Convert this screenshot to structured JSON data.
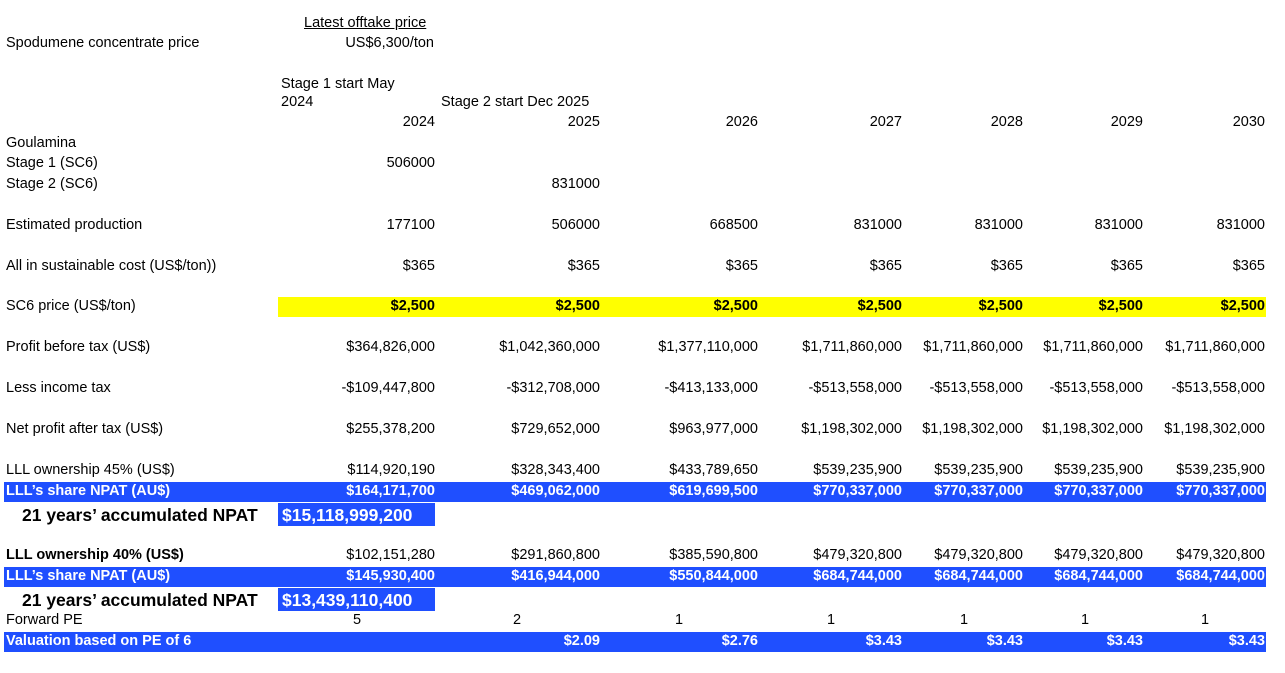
{
  "header": {
    "offtake_label": "Latest offtake price",
    "spodumene_label": "Spodumene concentrate price",
    "spodumene_value": "US$6,300/ton",
    "stage1_note_line1": "Stage 1 start May",
    "stage1_note_line2": "2024",
    "stage2_note": "Stage 2 start Dec 2025"
  },
  "years": [
    "2024",
    "2025",
    "2026",
    "2027",
    "2028",
    "2029",
    "2030"
  ],
  "labels": {
    "goulamina": "Goulamina",
    "stage1": "Stage 1 (SC6)",
    "stage2": "Stage 2 (SC6)",
    "estimated_production": "Estimated production",
    "aisc": "All in sustainable cost (US$/ton))",
    "sc6_price": "SC6 price (US$/ton)",
    "profit_before_tax": "Profit before tax (US$)",
    "less_income_tax": "Less income tax",
    "npat": "Net profit after tax (US$)",
    "own45": "LLL ownership 45% (US$)",
    "share45": "LLL’s share NPAT (AU$)",
    "accum": "21 years’ accumulated NPAT",
    "own40": "LLL ownership 40% (US$)",
    "share40": "LLL’s share NPAT (AU$)",
    "forward_pe": "Forward PE",
    "valuation": "Valuation based on PE of 6"
  },
  "rows": {
    "stage1": [
      "506000",
      "",
      "",
      "",
      "",
      "",
      ""
    ],
    "stage2": [
      "",
      "831000",
      "",
      "",
      "",
      "",
      ""
    ],
    "estimated_production": [
      "177100",
      "506000",
      "668500",
      "831000",
      "831000",
      "831000",
      "831000"
    ],
    "aisc": [
      "$365",
      "$365",
      "$365",
      "$365",
      "$365",
      "$365",
      "$365"
    ],
    "sc6_price": [
      "$2,500",
      "$2,500",
      "$2,500",
      "$2,500",
      "$2,500",
      "$2,500",
      "$2,500"
    ],
    "profit_before_tax": [
      "$364,826,000",
      "$1,042,360,000",
      "$1,377,110,000",
      "$1,711,860,000",
      "$1,711,860,000",
      "$1,711,860,000",
      "$1,711,860,000"
    ],
    "less_income_tax": [
      "-$109,447,800",
      "-$312,708,000",
      "-$413,133,000",
      "-$513,558,000",
      "-$513,558,000",
      "-$513,558,000",
      "-$513,558,000"
    ],
    "npat": [
      "$255,378,200",
      "$729,652,000",
      "$963,977,000",
      "$1,198,302,000",
      "$1,198,302,000",
      "$1,198,302,000",
      "$1,198,302,000"
    ],
    "own45": [
      "$114,920,190",
      "$328,343,400",
      "$433,789,650",
      "$539,235,900",
      "$539,235,900",
      "$539,235,900",
      "$539,235,900"
    ],
    "share45": [
      "$164,171,700",
      "$469,062,000",
      "$619,699,500",
      "$770,337,000",
      "$770,337,000",
      "$770,337,000",
      "$770,337,000"
    ],
    "accum45": "$15,118,999,200",
    "own40": [
      "$102,151,280",
      "$291,860,800",
      "$385,590,800",
      "$479,320,800",
      "$479,320,800",
      "$479,320,800",
      "$479,320,800"
    ],
    "share40": [
      "$145,930,400",
      "$416,944,000",
      "$550,844,000",
      "$684,744,000",
      "$684,744,000",
      "$684,744,000",
      "$684,744,000"
    ],
    "accum40": "$13,439,110,400",
    "forward_pe": [
      "5",
      "2",
      "1",
      "1",
      "1",
      "1",
      "1"
    ],
    "valuation": [
      "",
      "$2.09",
      "$2.76",
      "$3.43",
      "$3.43",
      "$3.43",
      "$3.43"
    ]
  },
  "colors": {
    "highlight_yellow": "#ffff00",
    "highlight_blue": "#1f4fff"
  }
}
